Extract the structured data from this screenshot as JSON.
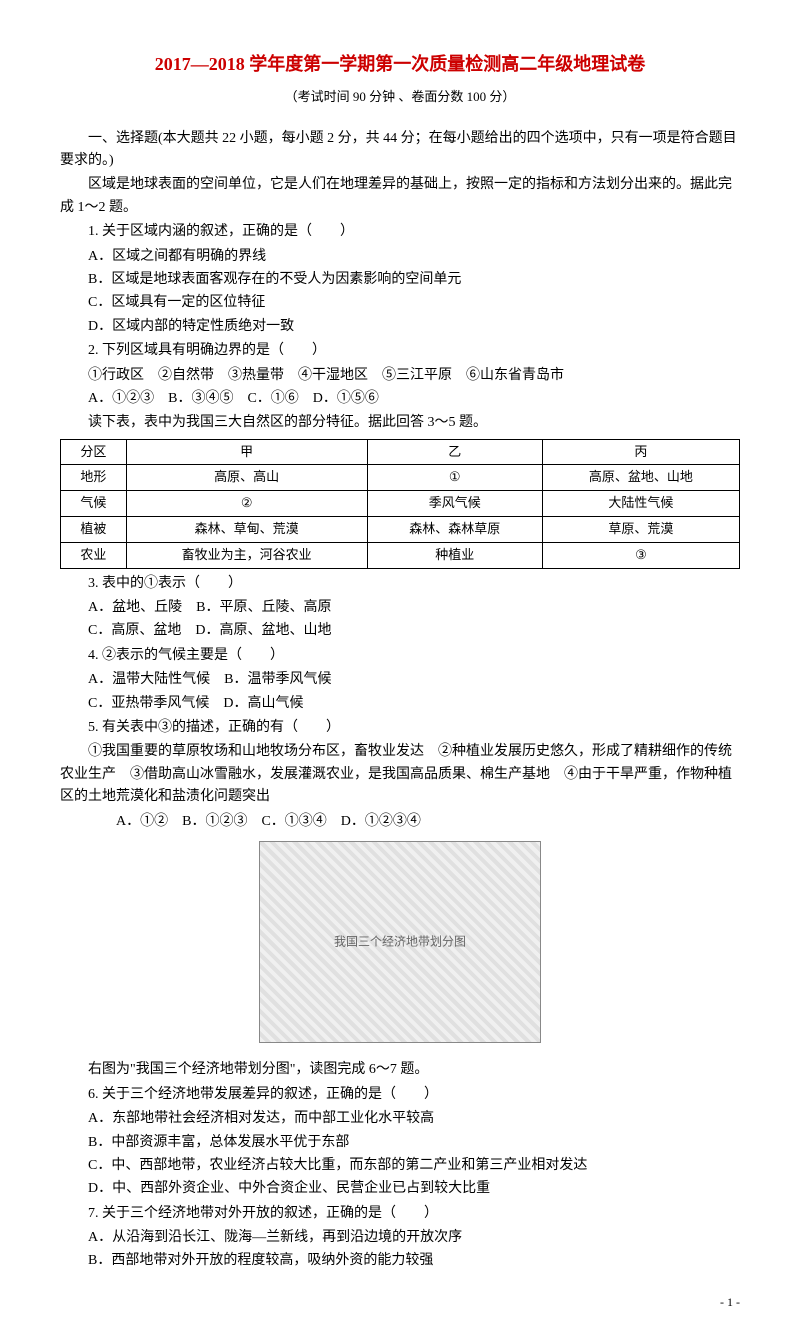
{
  "title": "2017—2018 学年度第一学期第一次质量检测高二年级地理试卷",
  "subtitle": "（考试时间 90 分钟 、卷面分数 100 分）",
  "section1": "一、选择题(本大题共 22 小题，每小题 2 分，共 44 分；在每小题给出的四个选项中，只有一项是符合题目要求的。)",
  "intro12": "区域是地球表面的空间单位，它是人们在地理差异的基础上，按照一定的指标和方法划分出来的。据此完成 1～2 题。",
  "q1": "1. 关于区域内涵的叙述，正确的是（　　）",
  "q1a": "A．区域之间都有明确的界线",
  "q1b": "B．区域是地球表面客观存在的不受人为因素影响的空间单元",
  "q1c": "C．区域具有一定的区位特征",
  "q1d": "D．区域内部的特定性质绝对一致",
  "q2": "2. 下列区域具有明确边界的是（　　）",
  "q2line": "①行政区　②自然带　③热量带　④干湿地区　⑤三江平原　⑥山东省青岛市",
  "q2opts": "A．①②③　B．③④⑤　C．①⑥　D．①⑤⑥",
  "intro35": "读下表，表中为我国三大自然区的部分特征。据此回答 3～5 题。",
  "table": {
    "rows": [
      [
        "分区",
        "甲",
        "乙",
        "丙"
      ],
      [
        "地形",
        "高原、高山",
        "①",
        "高原、盆地、山地"
      ],
      [
        "气候",
        "②",
        "季风气候",
        "大陆性气候"
      ],
      [
        "植被",
        "森林、草甸、荒漠",
        "森林、森林草原",
        "草原、荒漠"
      ],
      [
        "农业",
        "畜牧业为主，河谷农业",
        "种植业",
        "③"
      ]
    ]
  },
  "q3": "3. 表中的①表示（　　）",
  "q3a": "A．盆地、丘陵　B．平原、丘陵、高原",
  "q3b": "C．高原、盆地　D．高原、盆地、山地",
  "q4": "4. ②表示的气候主要是（　　）",
  "q4a": "A．温带大陆性气候　B．温带季风气候",
  "q4b": "C．亚热带季风气候　D．高山气候",
  "q5": "5. 有关表中③的描述，正确的有（　　）",
  "q5line": "①我国重要的草原牧场和山地牧场分布区，畜牧业发达　②种植业发展历史悠久，形成了精耕细作的传统农业生产　③借助高山冰雪融水，发展灌溉农业，是我国高品质果、棉生产基地　④由于干旱严重，作物种植区的土地荒漠化和盐渍化问题突出",
  "q5opts": "A．①②　B．①②③　C．①③④　D．①②③④",
  "mapcap": "我国三个经济地带划分图",
  "intro67": "右图为\"我国三个经济地带划分图\"，读图完成 6～7 题。",
  "q6": "6. 关于三个经济地带发展差异的叙述，正确的是（　　）",
  "q6a": "A．东部地带社会经济相对发达，而中部工业化水平较高",
  "q6b": "B．中部资源丰富，总体发展水平优于东部",
  "q6c": "C．中、西部地带，农业经济占较大比重，而东部的第二产业和第三产业相对发达",
  "q6d": "D．中、西部外资企业、中外合资企业、民营企业已占到较大比重",
  "q7": "7. 关于三个经济地带对外开放的叙述，正确的是（　　）",
  "q7a": "A．从沿海到沿长江、陇海—兰新线，再到沿边境的开放次序",
  "q7b": "B．西部地带对外开放的程度较高，吸纳外资的能力较强",
  "pagenum": "- 1 -"
}
